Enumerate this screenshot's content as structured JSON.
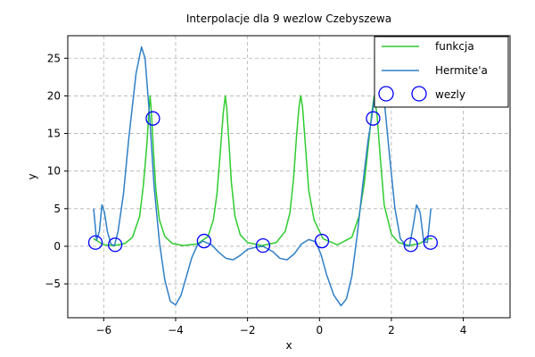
{
  "chart_data": {
    "type": "line",
    "title": "Interpolacje dla 9 wezlow Czebyszewa",
    "xlabel": "x",
    "ylabel": "y",
    "xlim": [
      -7.0,
      5.3
    ],
    "ylim": [
      -9.5,
      28.0
    ],
    "xticks": [
      -6,
      -4,
      -2,
      0,
      2,
      4
    ],
    "xtick_labels": [
      "−6",
      "−4",
      "−2",
      "0",
      "2",
      "4"
    ],
    "yticks": [
      -5,
      0,
      5,
      10,
      15,
      20,
      25
    ],
    "ytick_labels": [
      "−5",
      "0",
      "5",
      "10",
      "15",
      "20",
      "25"
    ],
    "grid": true,
    "legend_position": "top-right",
    "colors": {
      "funkcja": "#2ecc2e",
      "hermite": "#2f7fc7",
      "wezly": "#0000ff"
    },
    "series": [
      {
        "name": "funkcja",
        "type": "line",
        "x": [
          -6.2832,
          -6.0,
          -5.7,
          -5.4,
          -5.2,
          -5.0,
          -4.9,
          -4.8,
          -4.75,
          -4.71,
          -4.67,
          -4.62,
          -4.55,
          -4.45,
          -4.3,
          -4.1,
          -3.8,
          -3.4,
          -3.1,
          -2.95,
          -2.85,
          -2.75,
          -2.68,
          -2.62,
          -2.58,
          -2.52,
          -2.45,
          -2.35,
          -2.2,
          -2.0,
          -1.6,
          -1.2,
          -0.95,
          -0.82,
          -0.72,
          -0.64,
          -0.57,
          -0.52,
          -0.47,
          -0.4,
          -0.3,
          -0.15,
          0.1,
          0.5,
          0.9,
          1.1,
          1.25,
          1.35,
          1.45,
          1.52,
          1.6,
          1.68,
          1.8,
          2.0,
          2.2,
          2.5,
          2.8,
          3.0,
          3.1416
        ],
        "y": [
          1.0,
          0.2,
          0.1,
          0.4,
          1.2,
          4.0,
          8.0,
          13.5,
          17.5,
          20.0,
          17.5,
          13.0,
          7.5,
          3.5,
          1.3,
          0.4,
          0.1,
          0.3,
          1.3,
          3.5,
          7.0,
          13.0,
          17.5,
          20.0,
          18.5,
          14.0,
          8.5,
          4.0,
          1.5,
          0.5,
          0.1,
          0.5,
          2.0,
          4.5,
          9.0,
          14.5,
          18.5,
          20.0,
          18.5,
          14.0,
          7.5,
          3.5,
          1.0,
          0.2,
          1.2,
          4.0,
          8.5,
          13.0,
          17.5,
          20.0,
          17.5,
          12.5,
          5.5,
          1.6,
          0.5,
          0.1,
          0.4,
          1.0,
          1.0
        ]
      },
      {
        "name": "Hermite'a",
        "type": "line",
        "x": [
          -6.28,
          -6.2,
          -6.12,
          -6.05,
          -5.98,
          -5.9,
          -5.8,
          -5.7,
          -5.6,
          -5.45,
          -5.3,
          -5.1,
          -4.95,
          -4.85,
          -4.72,
          -4.6,
          -4.45,
          -4.3,
          -4.15,
          -4.0,
          -3.85,
          -3.7,
          -3.55,
          -3.4,
          -3.25,
          -3.0,
          -2.8,
          -2.6,
          -2.4,
          -2.2,
          -2.0,
          -1.75,
          -1.57,
          -1.3,
          -1.1,
          -0.9,
          -0.7,
          -0.5,
          -0.3,
          -0.1,
          0.05,
          0.2,
          0.4,
          0.6,
          0.75,
          0.9,
          1.05,
          1.2,
          1.35,
          1.45,
          1.55,
          1.65,
          1.8,
          1.95,
          2.1,
          2.25,
          2.4,
          2.5,
          2.6,
          2.7,
          2.8,
          2.9,
          3.0,
          3.1
        ],
        "y": [
          5.0,
          0.8,
          2.0,
          5.5,
          4.5,
          2.0,
          0.3,
          0.1,
          2.0,
          7.0,
          14.5,
          23.0,
          26.5,
          25.0,
          17.0,
          8.0,
          0.5,
          -4.5,
          -7.3,
          -7.8,
          -6.5,
          -4.0,
          -1.5,
          0.1,
          0.7,
          0.2,
          -0.8,
          -1.6,
          -1.8,
          -1.2,
          -0.4,
          -0.1,
          0.0,
          -0.7,
          -1.6,
          -1.8,
          -1.0,
          0.3,
          0.9,
          0.6,
          -1.2,
          -3.8,
          -6.5,
          -7.9,
          -7.0,
          -4.0,
          1.5,
          8.0,
          14.0,
          17.0,
          20.5,
          22.0,
          19.5,
          12.0,
          5.0,
          1.0,
          0.1,
          0.0,
          2.5,
          5.5,
          4.5,
          0.6,
          0.5,
          5.0
        ]
      },
      {
        "name": "wezly",
        "type": "scatter",
        "x": [
          -6.2304,
          -5.6818,
          -4.6342,
          -3.2094,
          -1.5708,
          0.0678,
          1.4926,
          2.5402,
          3.0888
        ],
        "y": [
          0.5,
          0.2,
          17.0,
          0.7,
          0.1,
          0.7,
          17.0,
          0.2,
          0.5
        ]
      }
    ]
  }
}
